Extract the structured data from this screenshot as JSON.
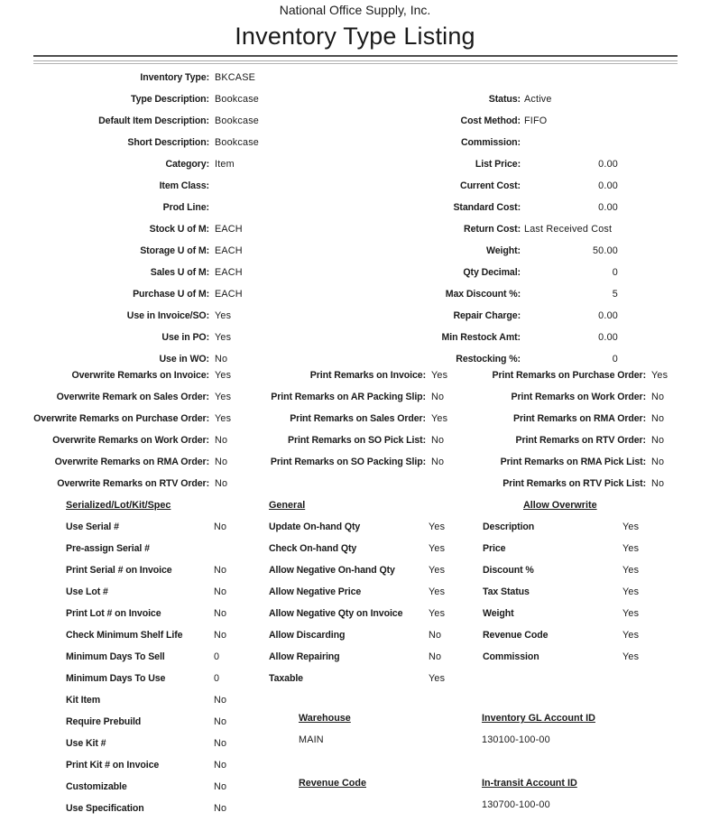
{
  "header": {
    "company": "National Office Supply, Inc.",
    "title": "Inventory Type Listing"
  },
  "top_left": {
    "rows": [
      {
        "label": "Inventory Type:",
        "value": "BKCASE"
      },
      {
        "label": "Type Description:",
        "value": "Bookcase"
      },
      {
        "label": "Default Item Description:",
        "value": "Bookcase"
      },
      {
        "label": "Short Description:",
        "value": "Bookcase"
      },
      {
        "label": "Category:",
        "value": "Item"
      },
      {
        "label": "Item Class:",
        "value": ""
      },
      {
        "label": "Prod Line:",
        "value": ""
      },
      {
        "label": "Stock U of M:",
        "value": "EACH"
      },
      {
        "label": "Storage U of M:",
        "value": "EACH"
      },
      {
        "label": "Sales U of M:",
        "value": "EACH"
      },
      {
        "label": "Purchase U of M:",
        "value": "EACH"
      },
      {
        "label": "Use in Invoice/SO:",
        "value": "Yes"
      },
      {
        "label": "Use in PO:",
        "value": "Yes"
      },
      {
        "label": "Use in WO:",
        "value": "No"
      }
    ]
  },
  "top_right": {
    "rows": [
      {
        "label": "Status:",
        "value": "Active"
      },
      {
        "label": "Cost Method:",
        "value": "FIFO"
      },
      {
        "label": "Commission:",
        "value": ""
      },
      {
        "label": "List Price:",
        "value": "0.00"
      },
      {
        "label": "Current Cost:",
        "value": "0.00"
      },
      {
        "label": "Standard Cost:",
        "value": "0.00"
      },
      {
        "label": "Return Cost:",
        "value": "Last Received Cost"
      },
      {
        "label": "Weight:",
        "value": "50.00"
      },
      {
        "label": "Qty Decimal:",
        "value": "0"
      },
      {
        "label": "Max Discount %:",
        "value": "5"
      },
      {
        "label": "Repair Charge:",
        "value": "0.00"
      },
      {
        "label": "Min Restock Amt:",
        "value": "0.00"
      },
      {
        "label": "Restocking %:",
        "value": "0"
      }
    ]
  },
  "overwrite_remarks": {
    "rows": [
      {
        "label": "Overwrite Remarks on Invoice:",
        "value": "Yes"
      },
      {
        "label": "Overwrite Remark on Sales Order:",
        "value": "Yes"
      },
      {
        "label": "Overwrite Remarks on Purchase Order:",
        "value": "Yes"
      },
      {
        "label": "Overwrite Remarks on Work Order:",
        "value": "No"
      },
      {
        "label": "Overwrite Remarks on RMA Order:",
        "value": "No"
      },
      {
        "label": "Overwrite Remarks on RTV Order:",
        "value": "No"
      }
    ]
  },
  "print_remarks_left": {
    "rows": [
      {
        "label": "Print Remarks on Invoice:",
        "value": "Yes"
      },
      {
        "label": "Print Remarks on AR Packing Slip:",
        "value": "No"
      },
      {
        "label": "Print Remarks on Sales Order:",
        "value": "Yes"
      },
      {
        "label": "Print Remarks on SO Pick List:",
        "value": "No"
      },
      {
        "label": "Print Remarks on SO Packing Slip:",
        "value": "No"
      }
    ]
  },
  "print_remarks_right": {
    "rows": [
      {
        "label": "Print Remarks on Purchase Order:",
        "value": "Yes"
      },
      {
        "label": "Print Remarks on Work Order:",
        "value": "No"
      },
      {
        "label": "Print Remarks on RMA Order:",
        "value": "No"
      },
      {
        "label": "Print Remarks on RTV Order:",
        "value": "No"
      },
      {
        "label": "Print Remarks on RMA Pick List:",
        "value": "No"
      },
      {
        "label": "Print Remarks on RTV Pick List:",
        "value": "No"
      }
    ]
  },
  "serialized": {
    "heading": "Serialized/Lot/Kit/Spec",
    "rows": [
      {
        "label": "Use Serial #",
        "value": "No"
      },
      {
        "label": "Pre-assign Serial #",
        "value": ""
      },
      {
        "label": "Print Serial # on Invoice",
        "value": "No"
      },
      {
        "label": "Use Lot #",
        "value": "No"
      },
      {
        "label": "Print Lot # on Invoice",
        "value": "No"
      },
      {
        "label": "Check Minimum Shelf Life",
        "value": "No"
      },
      {
        "label": "Minimum Days To Sell",
        "value": "0"
      },
      {
        "label": "Minimum Days To Use",
        "value": "0"
      },
      {
        "label": "Kit Item",
        "value": "No"
      },
      {
        "label": "Require Prebuild",
        "value": "No"
      },
      {
        "label": "Use Kit #",
        "value": "No"
      },
      {
        "label": "Print Kit # on Invoice",
        "value": "No"
      },
      {
        "label": "Customizable",
        "value": "No"
      },
      {
        "label": "Use Specification",
        "value": "No"
      }
    ]
  },
  "general": {
    "heading": "General",
    "rows": [
      {
        "label": "Update On-hand Qty",
        "value": "Yes"
      },
      {
        "label": "Check On-hand Qty",
        "value": "Yes"
      },
      {
        "label": "Allow Negative On-hand Qty",
        "value": "Yes"
      },
      {
        "label": "Allow Negative Price",
        "value": "Yes"
      },
      {
        "label": "Allow Negative Qty on Invoice",
        "value": "Yes"
      },
      {
        "label": "Allow Discarding",
        "value": "No"
      },
      {
        "label": "Allow Repairing",
        "value": "No"
      },
      {
        "label": "Taxable",
        "value": "Yes"
      }
    ]
  },
  "allow_overwrite": {
    "heading": "Allow Overwrite",
    "rows": [
      {
        "label": "Description",
        "value": "Yes"
      },
      {
        "label": "Price",
        "value": "Yes"
      },
      {
        "label": "Discount %",
        "value": "Yes"
      },
      {
        "label": "Tax Status",
        "value": "Yes"
      },
      {
        "label": "Weight",
        "value": "Yes"
      },
      {
        "label": "Revenue Code",
        "value": "Yes"
      },
      {
        "label": "Commission",
        "value": "Yes"
      }
    ]
  },
  "warehouse": {
    "heading": "Warehouse",
    "value": "MAIN"
  },
  "inventory_gl": {
    "heading": "Inventory GL Account ID",
    "value": "130100-100-00"
  },
  "revenue_code": {
    "heading": "Revenue Code",
    "value": ""
  },
  "in_transit": {
    "heading": "In-transit Account ID",
    "value": "130700-100-00"
  }
}
